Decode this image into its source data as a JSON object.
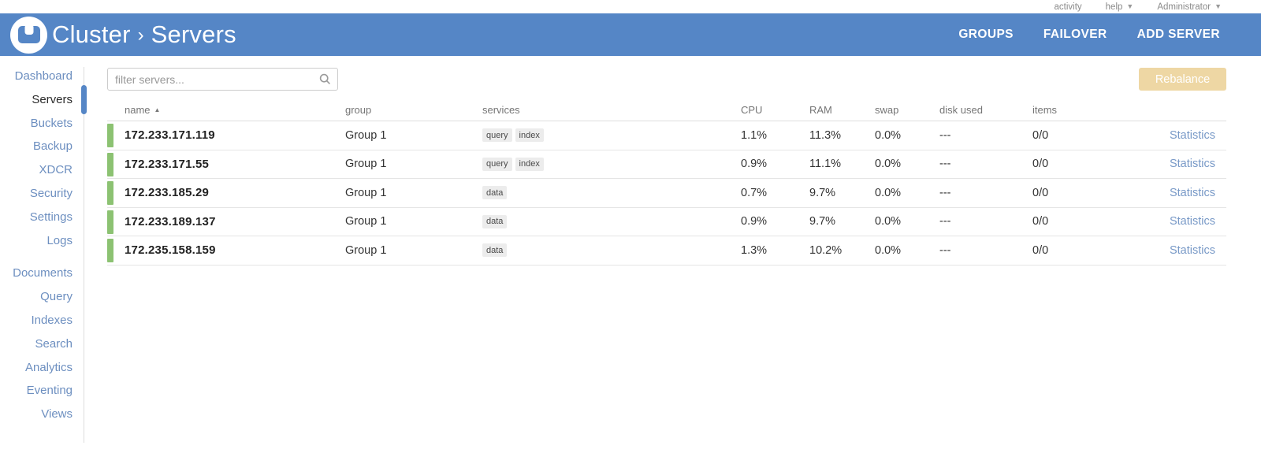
{
  "topbar": {
    "links": [
      {
        "label": "activity",
        "caret": false
      },
      {
        "label": "help",
        "caret": true
      },
      {
        "label": "Administrator",
        "caret": true
      }
    ]
  },
  "header": {
    "cluster_label": "Cluster",
    "separator": "›",
    "page_label": "Servers",
    "nav": [
      {
        "label": "GROUPS"
      },
      {
        "label": "FAILOVER"
      },
      {
        "label": "ADD SERVER"
      }
    ]
  },
  "sidebar": {
    "active": "Servers",
    "groups": [
      {
        "items": [
          {
            "label": "Dashboard"
          },
          {
            "label": "Servers"
          },
          {
            "label": "Buckets"
          },
          {
            "label": "Backup"
          },
          {
            "label": "XDCR"
          },
          {
            "label": "Security"
          },
          {
            "label": "Settings"
          },
          {
            "label": "Logs"
          }
        ]
      },
      {
        "items": [
          {
            "label": "Documents"
          },
          {
            "label": "Query"
          },
          {
            "label": "Indexes"
          },
          {
            "label": "Search"
          },
          {
            "label": "Analytics"
          },
          {
            "label": "Eventing"
          },
          {
            "label": "Views"
          }
        ]
      }
    ]
  },
  "main": {
    "filter": {
      "placeholder": "filter servers...",
      "value": ""
    },
    "rebalance_label": "Rebalance",
    "table": {
      "columns": [
        {
          "label": "name",
          "sorted": "asc"
        },
        {
          "label": "group"
        },
        {
          "label": "services"
        },
        {
          "label": "CPU"
        },
        {
          "label": "RAM"
        },
        {
          "label": "swap"
        },
        {
          "label": "disk used"
        },
        {
          "label": "items"
        },
        {
          "label": ""
        }
      ],
      "rows": [
        {
          "name": "172.233.171.119",
          "group": "Group 1",
          "services": [
            "query",
            "index"
          ],
          "cpu": "1.1%",
          "ram": "11.3%",
          "swap": "0.0%",
          "disk_used": "---",
          "items": "0/0",
          "stats_label": "Statistics",
          "status": "healthy"
        },
        {
          "name": "172.233.171.55",
          "group": "Group 1",
          "services": [
            "query",
            "index"
          ],
          "cpu": "0.9%",
          "ram": "11.1%",
          "swap": "0.0%",
          "disk_used": "---",
          "items": "0/0",
          "stats_label": "Statistics",
          "status": "healthy"
        },
        {
          "name": "172.233.185.29",
          "group": "Group 1",
          "services": [
            "data"
          ],
          "cpu": "0.7%",
          "ram": "9.7%",
          "swap": "0.0%",
          "disk_used": "---",
          "items": "0/0",
          "stats_label": "Statistics",
          "status": "healthy"
        },
        {
          "name": "172.233.189.137",
          "group": "Group 1",
          "services": [
            "data"
          ],
          "cpu": "0.9%",
          "ram": "9.7%",
          "swap": "0.0%",
          "disk_used": "---",
          "items": "0/0",
          "stats_label": "Statistics",
          "status": "healthy"
        },
        {
          "name": "172.235.158.159",
          "group": "Group 1",
          "services": [
            "data"
          ],
          "cpu": "1.3%",
          "ram": "10.2%",
          "swap": "0.0%",
          "disk_used": "---",
          "items": "0/0",
          "stats_label": "Statistics",
          "status": "healthy"
        }
      ]
    }
  },
  "colors": {
    "header_blue": "#5586c6",
    "sidebar_link": "#6d8fc0",
    "active_green": "#8cc272",
    "rebalance_bg": "#eed7a4",
    "link_blue": "#7899c7"
  }
}
